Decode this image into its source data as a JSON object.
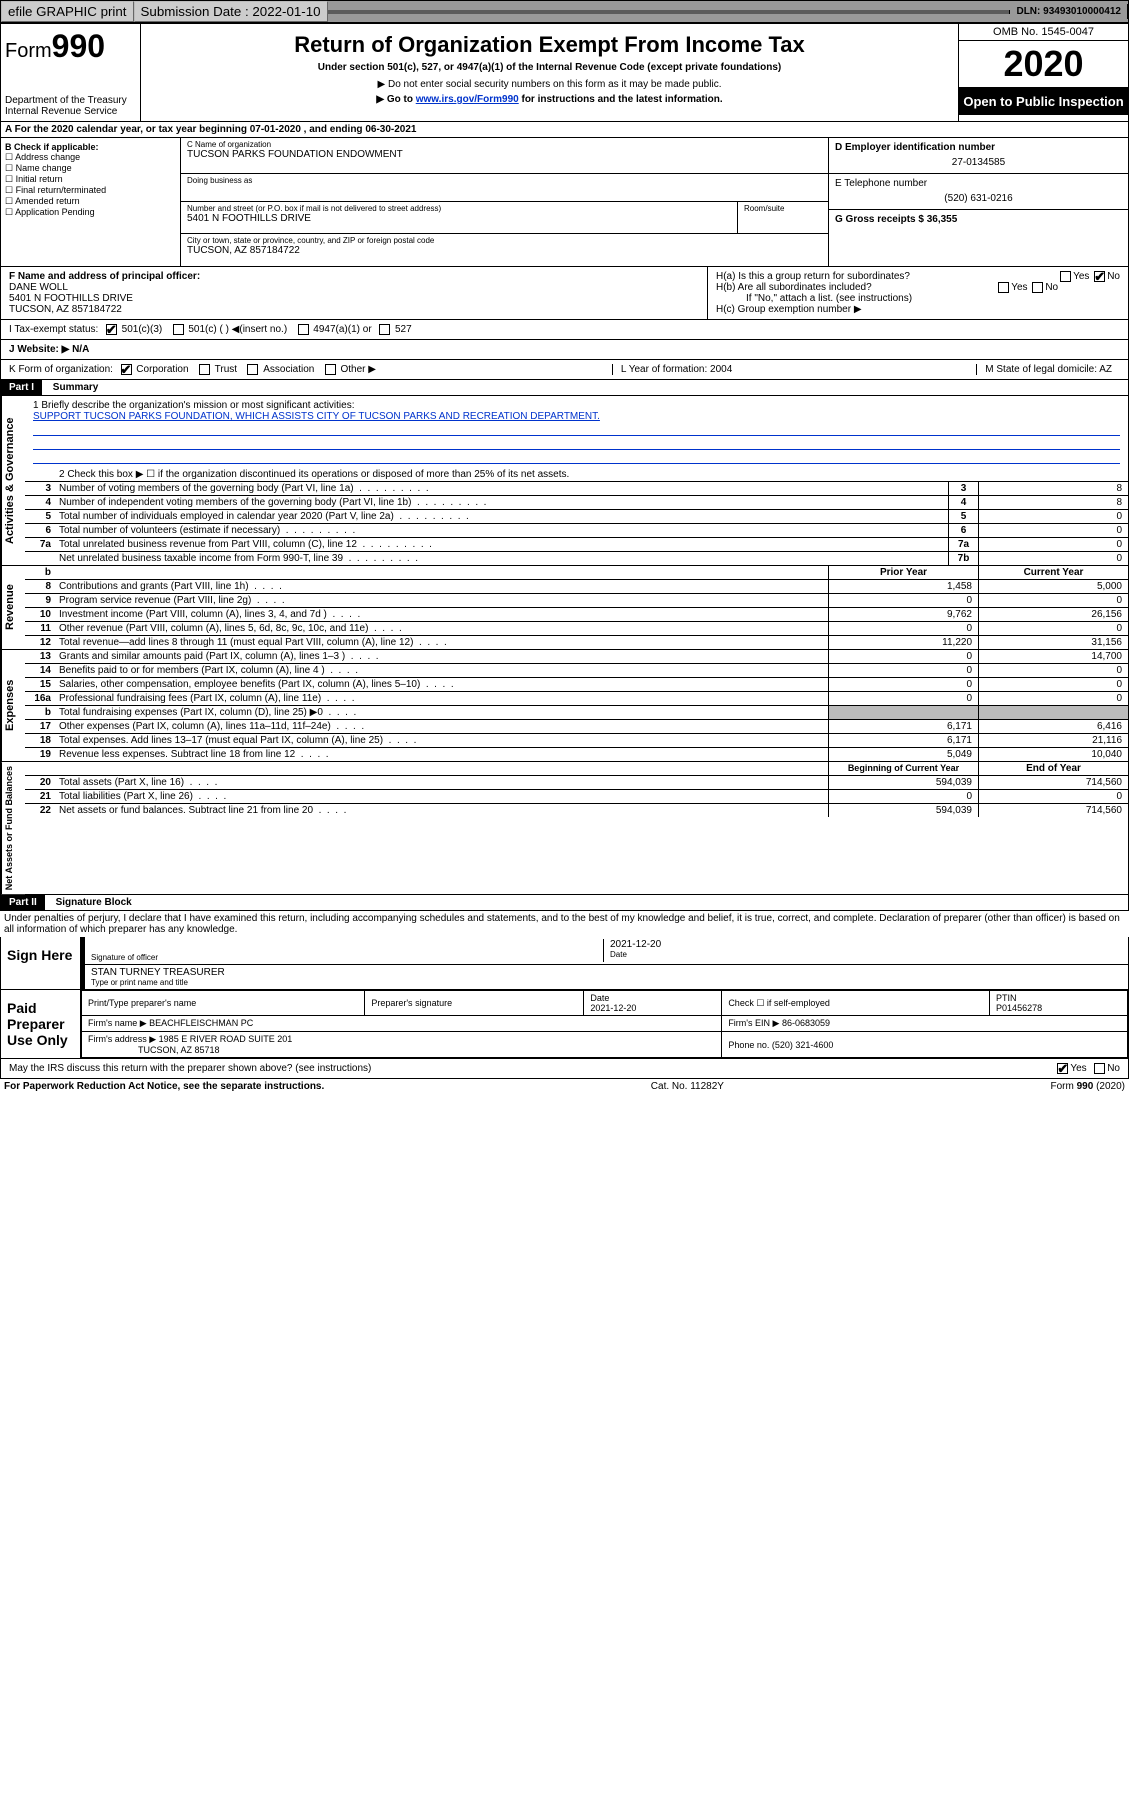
{
  "topbar": {
    "efile": "efile GRAPHIC print",
    "submission": "Submission Date : 2022-01-10",
    "dln": "DLN: 93493010000412"
  },
  "header": {
    "form_prefix": "Form",
    "form_num": "990",
    "dept": "Department of the Treasury",
    "irs": "Internal Revenue Service",
    "title": "Return of Organization Exempt From Income Tax",
    "subtitle": "Under section 501(c), 527, or 4947(a)(1) of the Internal Revenue Code (except private foundations)",
    "note1": "▶ Do not enter social security numbers on this form as it may be made public.",
    "note2_pre": "▶ Go to ",
    "note2_link": "www.irs.gov/Form990",
    "note2_post": " for instructions and the latest information.",
    "omb": "OMB No. 1545-0047",
    "year": "2020",
    "public": "Open to Public Inspection"
  },
  "row_a": "A For the 2020 calendar year, or tax year beginning 07-01-2020   , and ending 06-30-2021",
  "section_b": {
    "label": "B Check if applicable:",
    "items": [
      "☐ Address change",
      "☐ Name change",
      "☐ Initial return",
      "☐ Final return/terminated",
      "☐ Amended return",
      "☐ Application Pending"
    ]
  },
  "section_c": {
    "name_label": "C Name of organization",
    "name": "TUCSON PARKS FOUNDATION ENDOWMENT",
    "dba_label": "Doing business as",
    "street_label": "Number and street (or P.O. box if mail is not delivered to street address)",
    "street": "5401 N FOOTHILLS DRIVE",
    "suite_label": "Room/suite",
    "city_label": "City or town, state or province, country, and ZIP or foreign postal code",
    "city": "TUCSON, AZ  857184722"
  },
  "section_d": {
    "label": "D Employer identification number",
    "value": "27-0134585"
  },
  "section_e": {
    "label": "E Telephone number",
    "value": "(520) 631-0216"
  },
  "section_g": {
    "label": "G Gross receipts $ 36,355"
  },
  "section_f": {
    "label": "F  Name and address of principal officer:",
    "name": "DANE WOLL",
    "addr1": "5401 N FOOTHILLS DRIVE",
    "addr2": "TUCSON, AZ  857184722"
  },
  "section_h": {
    "ha": "H(a)  Is this a group return for subordinates?",
    "hb": "H(b)  Are all subordinates included?",
    "hb_note": "If \"No,\" attach a list. (see instructions)",
    "hc": "H(c)  Group exemption number ▶"
  },
  "row_i": {
    "label": "I   Tax-exempt status:",
    "opts": [
      "501(c)(3)",
      "501(c) (  ) ◀(insert no.)",
      "4947(a)(1) or",
      "527"
    ]
  },
  "row_j": "J   Website: ▶  N/A",
  "row_k": {
    "label": "K Form of organization:",
    "opts": [
      "Corporation",
      "Trust",
      "Association",
      "Other ▶"
    ],
    "l": "L Year of formation: 2004",
    "m": "M State of legal domicile: AZ"
  },
  "part1": {
    "title": "Part I",
    "subtitle": "Summary",
    "line1_label": "1  Briefly describe the organization's mission or most significant activities:",
    "mission": "SUPPORT TUCSON PARKS FOUNDATION, WHICH ASSISTS CITY OF TUCSON PARKS AND RECREATION DEPARTMENT.",
    "line2": "2   Check this box ▶ ☐  if the organization discontinued its operations or disposed of more than 25% of its net assets."
  },
  "gov_lines": [
    {
      "n": "3",
      "t": "Number of voting members of the governing body (Part VI, line 1a)",
      "b": "3",
      "v": "8"
    },
    {
      "n": "4",
      "t": "Number of independent voting members of the governing body (Part VI, line 1b)",
      "b": "4",
      "v": "8"
    },
    {
      "n": "5",
      "t": "Total number of individuals employed in calendar year 2020 (Part V, line 2a)",
      "b": "5",
      "v": "0"
    },
    {
      "n": "6",
      "t": "Total number of volunteers (estimate if necessary)",
      "b": "6",
      "v": "0"
    },
    {
      "n": "7a",
      "t": "Total unrelated business revenue from Part VIII, column (C), line 12",
      "b": "7a",
      "v": "0"
    },
    {
      "n": "",
      "t": "Net unrelated business taxable income from Form 990-T, line 39",
      "b": "7b",
      "v": "0"
    }
  ],
  "rev_header": {
    "n": "b",
    "t": "",
    "py": "Prior Year",
    "cy": "Current Year"
  },
  "rev_lines": [
    {
      "n": "8",
      "t": "Contributions and grants (Part VIII, line 1h)",
      "py": "1,458",
      "cy": "5,000"
    },
    {
      "n": "9",
      "t": "Program service revenue (Part VIII, line 2g)",
      "py": "0",
      "cy": "0"
    },
    {
      "n": "10",
      "t": "Investment income (Part VIII, column (A), lines 3, 4, and 7d )",
      "py": "9,762",
      "cy": "26,156"
    },
    {
      "n": "11",
      "t": "Other revenue (Part VIII, column (A), lines 5, 6d, 8c, 9c, 10c, and 11e)",
      "py": "0",
      "cy": "0"
    },
    {
      "n": "12",
      "t": "Total revenue—add lines 8 through 11 (must equal Part VIII, column (A), line 12)",
      "py": "11,220",
      "cy": "31,156"
    }
  ],
  "exp_lines": [
    {
      "n": "13",
      "t": "Grants and similar amounts paid (Part IX, column (A), lines 1–3 )",
      "py": "0",
      "cy": "14,700"
    },
    {
      "n": "14",
      "t": "Benefits paid to or for members (Part IX, column (A), line 4 )",
      "py": "0",
      "cy": "0"
    },
    {
      "n": "15",
      "t": "Salaries, other compensation, employee benefits (Part IX, column (A), lines 5–10)",
      "py": "0",
      "cy": "0"
    },
    {
      "n": "16a",
      "t": "Professional fundraising fees (Part IX, column (A), line 11e)",
      "py": "0",
      "cy": "0"
    },
    {
      "n": "b",
      "t": "Total fundraising expenses (Part IX, column (D), line 25) ▶0",
      "py": "",
      "cy": "",
      "shaded": true
    },
    {
      "n": "17",
      "t": "Other expenses (Part IX, column (A), lines 11a–11d, 11f–24e)",
      "py": "6,171",
      "cy": "6,416"
    },
    {
      "n": "18",
      "t": "Total expenses. Add lines 13–17 (must equal Part IX, column (A), line 25)",
      "py": "6,171",
      "cy": "21,116"
    },
    {
      "n": "19",
      "t": "Revenue less expenses. Subtract line 18 from line 12",
      "py": "5,049",
      "cy": "10,040"
    }
  ],
  "na_header": {
    "py": "Beginning of Current Year",
    "cy": "End of Year"
  },
  "na_lines": [
    {
      "n": "20",
      "t": "Total assets (Part X, line 16)",
      "py": "594,039",
      "cy": "714,560"
    },
    {
      "n": "21",
      "t": "Total liabilities (Part X, line 26)",
      "py": "0",
      "cy": "0"
    },
    {
      "n": "22",
      "t": "Net assets or fund balances. Subtract line 21 from line 20",
      "py": "594,039",
      "cy": "714,560"
    }
  ],
  "part2": {
    "title": "Part II",
    "subtitle": "Signature Block",
    "penalty": "Under penalties of perjury, I declare that I have examined this return, including accompanying schedules and statements, and to the best of my knowledge and belief, it is true, correct, and complete. Declaration of preparer (other than officer) is based on all information of which preparer has any knowledge."
  },
  "sign": {
    "here": "Sign Here",
    "sig_label": "Signature of officer",
    "date": "2021-12-20",
    "date_label": "Date",
    "name": "STAN TURNEY TREASURER",
    "name_label": "Type or print name and title"
  },
  "paid": {
    "label": "Paid Preparer Use Only",
    "h1": "Print/Type preparer's name",
    "h2": "Preparer's signature",
    "h3": "Date",
    "date": "2021-12-20",
    "h4": "Check ☐ if self-employed",
    "h5": "PTIN",
    "ptin": "P01456278",
    "firm_label": "Firm's name    ▶",
    "firm": "BEACHFLEISCHMAN PC",
    "ein_label": "Firm's EIN ▶",
    "ein": "86-0683059",
    "addr_label": "Firm's address ▶",
    "addr1": "1985 E RIVER ROAD SUITE 201",
    "addr2": "TUCSON, AZ  85718",
    "phone_label": "Phone no.",
    "phone": "(520) 321-4600"
  },
  "discuss": "May the IRS discuss this return with the preparer shown above? (see instructions)",
  "footer": {
    "l": "For Paperwork Reduction Act Notice, see the separate instructions.",
    "c": "Cat. No. 11282Y",
    "r": "Form 990 (2020)"
  },
  "vtabs": {
    "gov": "Activities & Governance",
    "rev": "Revenue",
    "exp": "Expenses",
    "na": "Net Assets or Fund Balances"
  }
}
